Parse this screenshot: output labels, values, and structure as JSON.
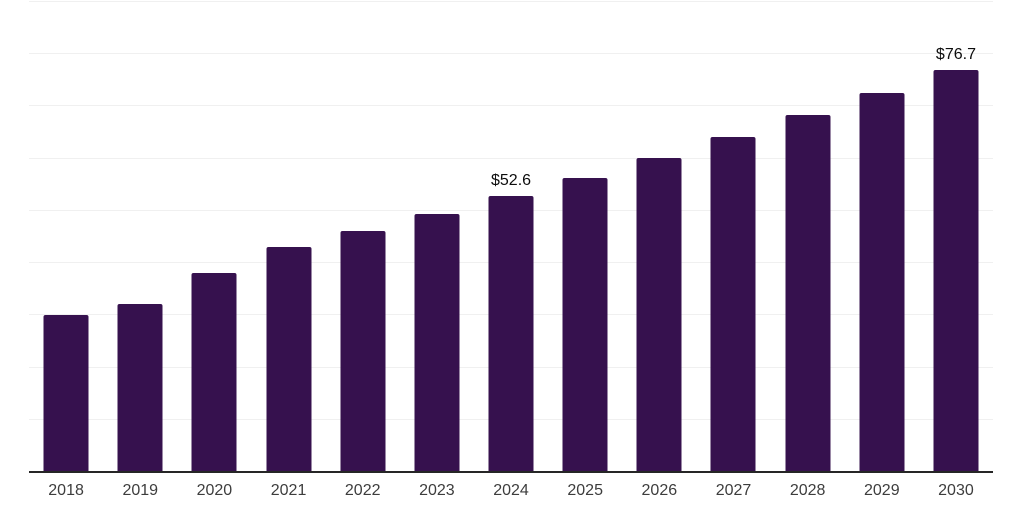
{
  "chart_data": {
    "type": "bar",
    "title": "",
    "xlabel": "",
    "ylabel": "",
    "categories": [
      "2018",
      "2019",
      "2020",
      "2021",
      "2022",
      "2023",
      "2024",
      "2025",
      "2026",
      "2027",
      "2028",
      "2029",
      "2030"
    ],
    "values": [
      29.8,
      31.9,
      37.9,
      42.9,
      46.0,
      49.3,
      52.6,
      56.2,
      59.9,
      64.0,
      68.1,
      72.3,
      76.7
    ],
    "data_labels": {
      "2024": "$52.6",
      "2030": "$76.7"
    },
    "ylim": [
      0,
      90
    ],
    "grid_step": 10,
    "grid": "horizontal",
    "legend": "none",
    "y_tick_labels_visible": false,
    "colors": {
      "bar": "#36114E",
      "gridline": "#f0f0f0",
      "axis_line": "#262626",
      "tick_label": "#3d3d3d",
      "data_label": "#0d0d0d",
      "background": "#ffffff"
    }
  }
}
